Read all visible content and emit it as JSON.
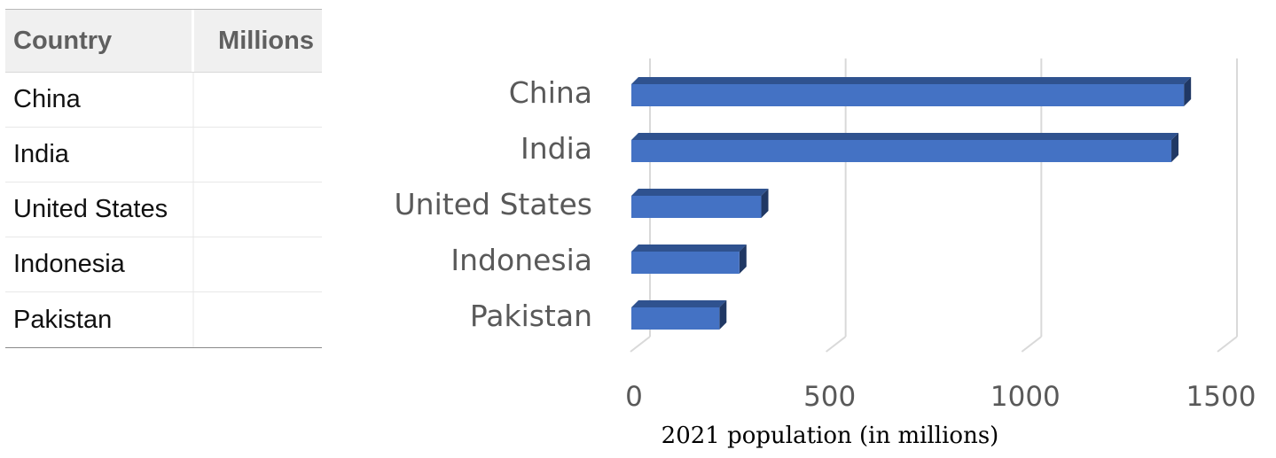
{
  "table": {
    "headers": [
      "Country",
      "Millions"
    ],
    "rows": [
      {
        "country": "China",
        "millions": ""
      },
      {
        "country": "India",
        "millions": ""
      },
      {
        "country": "United States",
        "millions": ""
      },
      {
        "country": "Indonesia",
        "millions": ""
      },
      {
        "country": "Pakistan",
        "millions": ""
      }
    ]
  },
  "chart_data": {
    "type": "bar",
    "orientation": "horizontal",
    "style": "3d",
    "categories": [
      "China",
      "India",
      "United States",
      "Indonesia",
      "Pakistan"
    ],
    "values": [
      1412,
      1380,
      332,
      276,
      225
    ],
    "xlabel": "2021 population (in millions)",
    "ylabel": "",
    "title": "",
    "xlim": [
      0,
      1500
    ],
    "xticks": [
      0,
      500,
      1000,
      1500
    ],
    "grid": true,
    "legend": "none",
    "colors": {
      "bar_front": "#4472c4",
      "bar_top": "#2f528f",
      "bar_side": "#203864",
      "grid": "#d9d9d9",
      "tick_text": "#595959",
      "category_text": "#595959",
      "xlabel_text": "#000000"
    }
  }
}
